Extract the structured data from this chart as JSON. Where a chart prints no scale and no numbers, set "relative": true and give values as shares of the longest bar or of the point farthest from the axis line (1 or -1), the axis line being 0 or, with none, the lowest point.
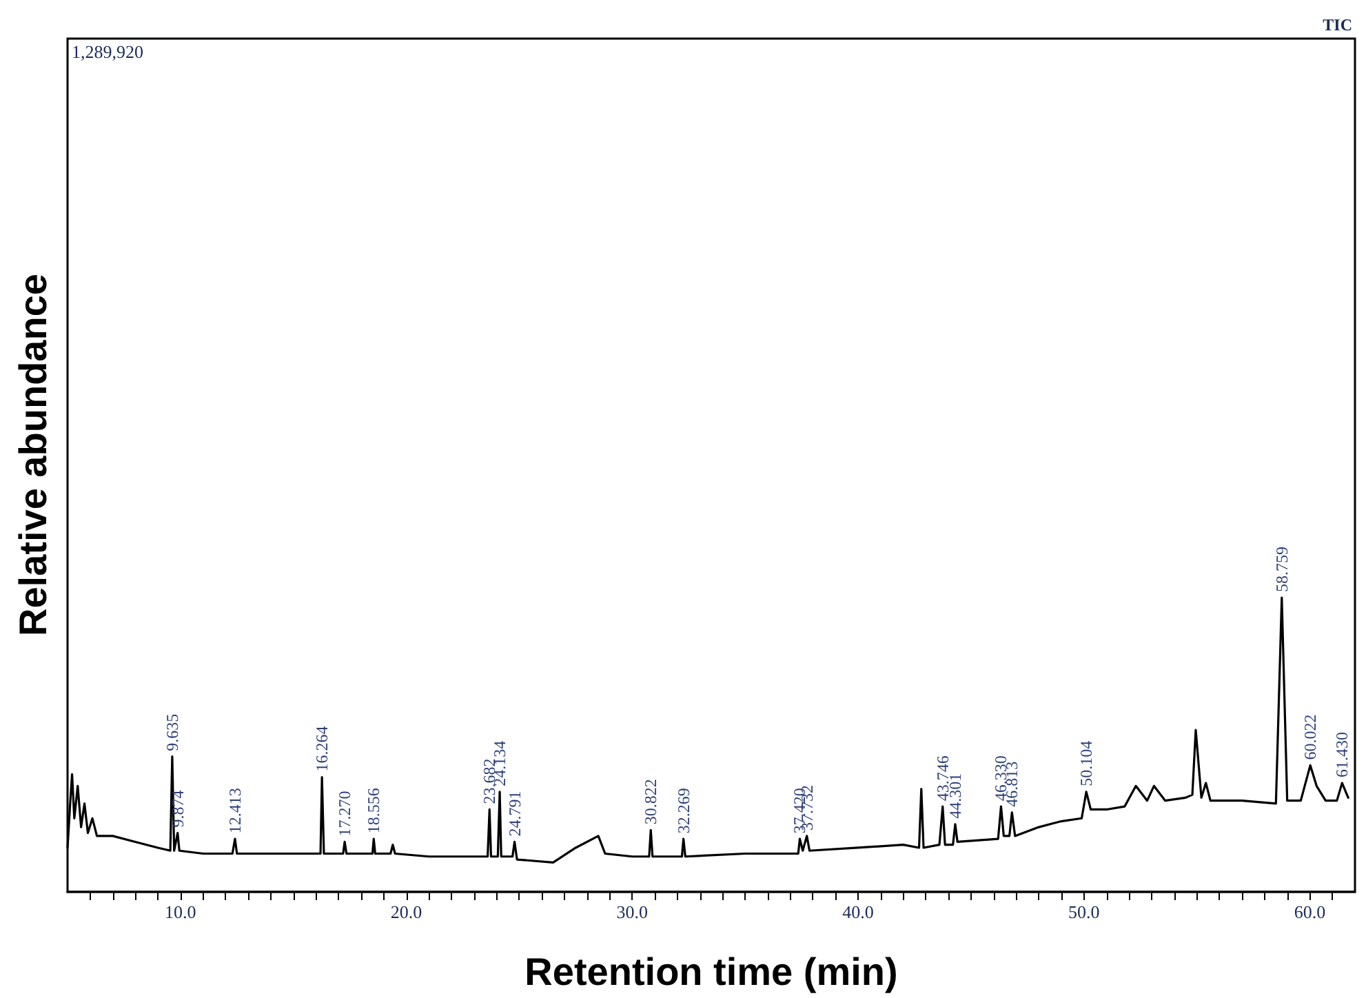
{
  "chart_data": {
    "type": "line",
    "relative": true,
    "xlabel": "Retention time (min)",
    "ylabel": "Relative abundance",
    "annotations": [
      "1,289,920",
      "TIC",
      {
        "text": "9.635",
        "x": 9.635,
        "y": 0.46
      },
      {
        "text": "9.874",
        "x": 9.874,
        "y": 0.2
      },
      {
        "text": "12.413",
        "x": 12.413,
        "y": 0.18
      },
      {
        "text": "16.264",
        "x": 16.264,
        "y": 0.39
      },
      {
        "text": "17.270",
        "x": 17.27,
        "y": 0.17
      },
      {
        "text": "18.556",
        "x": 18.556,
        "y": 0.18
      },
      {
        "text": "23.682",
        "x": 23.682,
        "y": 0.28
      },
      {
        "text": "24.134",
        "x": 24.134,
        "y": 0.34
      },
      {
        "text": "24.791",
        "x": 24.791,
        "y": 0.17
      },
      {
        "text": "30.822",
        "x": 30.822,
        "y": 0.21
      },
      {
        "text": "32.269",
        "x": 32.269,
        "y": 0.18
      },
      {
        "text": "37.420",
        "x": 37.42,
        "y": 0.18
      },
      {
        "text": "37.732",
        "x": 37.732,
        "y": 0.19
      },
      {
        "text": "43.746",
        "x": 43.746,
        "y": 0.29
      },
      {
        "text": "44.301",
        "x": 44.301,
        "y": 0.23
      },
      {
        "text": "46.330",
        "x": 46.33,
        "y": 0.29
      },
      {
        "text": "46.813",
        "x": 46.813,
        "y": 0.27
      },
      {
        "text": "50.104",
        "x": 50.104,
        "y": 0.34
      },
      {
        "text": "58.759",
        "x": 58.759,
        "y": 1
      },
      {
        "text": "60.022",
        "x": 60.022,
        "y": 0.43
      },
      {
        "text": "61.430",
        "x": 61.43,
        "y": 0.37
      }
    ],
    "x": [
      5.0,
      5.1,
      5.2,
      5.3,
      5.45,
      5.6,
      5.75,
      5.9,
      6.1,
      6.3,
      7.0,
      8.0,
      9.0,
      9.55,
      9.635,
      9.72,
      9.874,
      9.95,
      11.0,
      12.3,
      12.413,
      12.5,
      14.0,
      16.2,
      16.264,
      16.35,
      17.2,
      17.27,
      17.35,
      18.5,
      18.556,
      18.62,
      19.3,
      19.4,
      19.5,
      21.0,
      23.6,
      23.682,
      23.75,
      24.05,
      24.134,
      24.2,
      24.7,
      24.791,
      24.9,
      26.5,
      27.5,
      28.5,
      28.8,
      30.0,
      30.75,
      30.822,
      30.9,
      32.2,
      32.269,
      32.35,
      35.0,
      37.35,
      37.42,
      37.55,
      37.732,
      37.85,
      40.0,
      42.0,
      42.7,
      42.8,
      42.9,
      43.6,
      43.746,
      43.85,
      44.2,
      44.301,
      44.4,
      46.2,
      46.33,
      46.45,
      46.7,
      46.813,
      46.95,
      48.0,
      49.0,
      49.9,
      50.104,
      50.3,
      51.0,
      51.8,
      52.3,
      52.8,
      53.1,
      53.6,
      54.5,
      54.8,
      54.95,
      55.2,
      55.4,
      55.6,
      57.0,
      58.5,
      58.759,
      59.0,
      59.6,
      60.022,
      60.3,
      60.7,
      61.2,
      61.43,
      61.7
    ],
    "series": [
      {
        "color": "#000000",
        "values": [
          0.15,
          0.28,
          0.4,
          0.25,
          0.36,
          0.22,
          0.3,
          0.2,
          0.25,
          0.19,
          0.19,
          0.17,
          0.15,
          0.14,
          0.46,
          0.14,
          0.2,
          0.14,
          0.13,
          0.13,
          0.18,
          0.13,
          0.13,
          0.13,
          0.39,
          0.13,
          0.13,
          0.17,
          0.13,
          0.13,
          0.18,
          0.13,
          0.13,
          0.16,
          0.13,
          0.12,
          0.12,
          0.28,
          0.12,
          0.12,
          0.34,
          0.12,
          0.12,
          0.17,
          0.11,
          0.1,
          0.15,
          0.19,
          0.13,
          0.12,
          0.12,
          0.21,
          0.12,
          0.12,
          0.18,
          0.12,
          0.13,
          0.13,
          0.18,
          0.14,
          0.19,
          0.14,
          0.15,
          0.16,
          0.15,
          0.35,
          0.15,
          0.16,
          0.29,
          0.16,
          0.16,
          0.23,
          0.17,
          0.18,
          0.29,
          0.19,
          0.19,
          0.27,
          0.19,
          0.22,
          0.24,
          0.25,
          0.34,
          0.28,
          0.28,
          0.29,
          0.36,
          0.31,
          0.36,
          0.31,
          0.32,
          0.33,
          0.55,
          0.32,
          0.37,
          0.31,
          0.31,
          0.3,
          1,
          0.31,
          0.31,
          0.43,
          0.36,
          0.31,
          0.31,
          0.37,
          0.32
        ]
      }
    ],
    "xlim": [
      5,
      62
    ],
    "xticks": [
      {
        "value": 6,
        "label": null
      },
      {
        "value": 7,
        "label": null
      },
      {
        "value": 8,
        "label": null
      },
      {
        "value": 9,
        "label": null
      },
      {
        "value": 10,
        "label": "10.0"
      },
      {
        "value": 11,
        "label": null
      },
      {
        "value": 12,
        "label": null
      },
      {
        "value": 13,
        "label": null
      },
      {
        "value": 14,
        "label": null
      },
      {
        "value": 15,
        "label": null
      },
      {
        "value": 16,
        "label": null
      },
      {
        "value": 17,
        "label": null
      },
      {
        "value": 18,
        "label": null
      },
      {
        "value": 19,
        "label": null
      },
      {
        "value": 20,
        "label": "20.0"
      },
      {
        "value": 21,
        "label": null
      },
      {
        "value": 22,
        "label": null
      },
      {
        "value": 23,
        "label": null
      },
      {
        "value": 24,
        "label": null
      },
      {
        "value": 25,
        "label": null
      },
      {
        "value": 26,
        "label": null
      },
      {
        "value": 27,
        "label": null
      },
      {
        "value": 28,
        "label": null
      },
      {
        "value": 29,
        "label": null
      },
      {
        "value": 30,
        "label": "30.0"
      },
      {
        "value": 31,
        "label": null
      },
      {
        "value": 32,
        "label": null
      },
      {
        "value": 33,
        "label": null
      },
      {
        "value": 34,
        "label": null
      },
      {
        "value": 35,
        "label": null
      },
      {
        "value": 36,
        "label": null
      },
      {
        "value": 37,
        "label": null
      },
      {
        "value": 38,
        "label": null
      },
      {
        "value": 39,
        "label": null
      },
      {
        "value": 40,
        "label": "40.0"
      },
      {
        "value": 41,
        "label": null
      },
      {
        "value": 42,
        "label": null
      },
      {
        "value": 43,
        "label": null
      },
      {
        "value": 44,
        "label": null
      },
      {
        "value": 45,
        "label": null
      },
      {
        "value": 46,
        "label": null
      },
      {
        "value": 47,
        "label": null
      },
      {
        "value": 48,
        "label": null
      },
      {
        "value": 49,
        "label": null
      },
      {
        "value": 50,
        "label": "50.0"
      },
      {
        "value": 51,
        "label": null
      },
      {
        "value": 52,
        "label": null
      },
      {
        "value": 53,
        "label": null
      },
      {
        "value": 54,
        "label": null
      },
      {
        "value": 55,
        "label": null
      },
      {
        "value": 56,
        "label": null
      },
      {
        "value": 57,
        "label": null
      },
      {
        "value": 58,
        "label": null
      },
      {
        "value": 59,
        "label": null
      },
      {
        "value": 60,
        "label": "60.0"
      },
      {
        "value": 61,
        "label": null
      }
    ],
    "grid": false,
    "marker": "none",
    "line_style": "solid"
  }
}
